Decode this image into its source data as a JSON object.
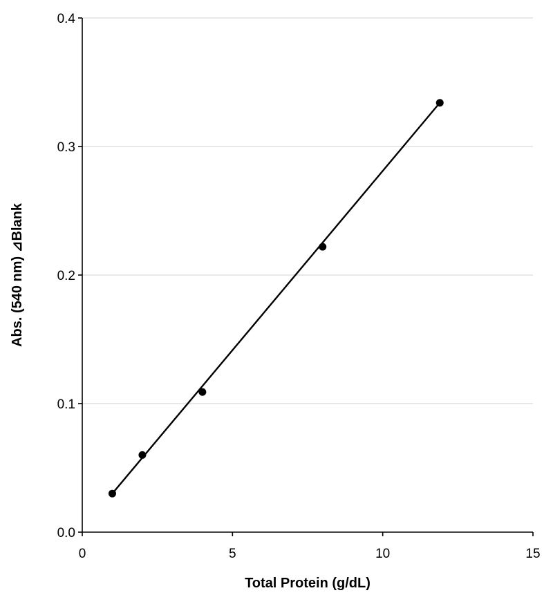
{
  "chart_data": {
    "type": "scatter",
    "title": "",
    "xlabel": "Total Protein (g/dL)",
    "ylabel": "Abs. (540 nm) ⊿Blank",
    "xlim": [
      0,
      15
    ],
    "ylim": [
      0.0,
      0.4
    ],
    "x_ticks": [
      "0",
      "5",
      "10",
      "15"
    ],
    "y_ticks": [
      "0.0",
      "0.1",
      "0.2",
      "0.3",
      "0.4"
    ],
    "grid": "horizontal",
    "legend": "none",
    "series": [
      {
        "x": [
          1,
          2,
          4,
          8,
          11.9
        ],
        "y": [
          0.03,
          0.06,
          0.109,
          0.222,
          0.334
        ],
        "marker": "circle",
        "color": "#000000"
      }
    ],
    "trendline": {
      "type": "linear",
      "x": [
        1,
        11.9
      ],
      "y": [
        0.03,
        0.334
      ],
      "color": "#000000"
    },
    "colors": {
      "gridline": "#d9d9d9",
      "axis": "#000000"
    }
  }
}
